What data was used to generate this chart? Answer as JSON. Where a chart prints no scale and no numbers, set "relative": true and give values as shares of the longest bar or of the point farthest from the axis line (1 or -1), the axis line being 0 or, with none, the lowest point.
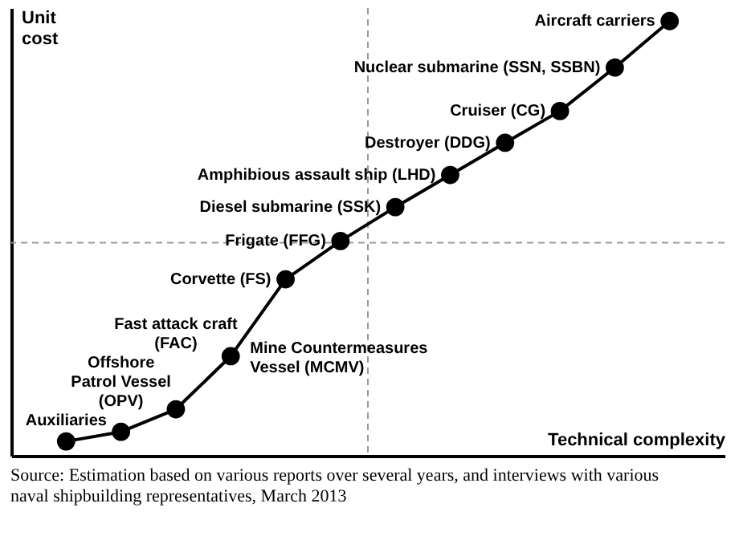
{
  "chart_data": {
    "type": "line",
    "relative": true,
    "marker": "circle",
    "line_style": "solid",
    "color": "#000000",
    "grid": false,
    "tick_labels": false,
    "xlabel": "Technical complexity",
    "ylabel": "Unit cost",
    "categories": [
      null,
      null,
      null,
      null,
      null,
      null,
      null,
      null,
      null,
      null,
      null,
      null
    ],
    "values": [
      0.033,
      0.055,
      0.107,
      0.229,
      0.406,
      0.494,
      0.572,
      0.646,
      0.72,
      0.793,
      0.893,
      1
    ],
    "ref_lines": [
      {
        "axis": "x",
        "line_style": "dashed",
        "color": "#999999"
      },
      {
        "axis": "y",
        "value": 0.49,
        "line_style": "dashed",
        "color": "#999999"
      }
    ],
    "annotations": [
      "Auxiliaries",
      "Offshore\nPatrol Vessel\n(OPV)",
      "Fast attack craft\n(FAC)",
      "Mine Countermeasures\nVessel (MCMV)",
      "Corvette (FS)",
      "Frigate (FFG)",
      "Diesel submarine (SSK)",
      "Amphibious assault ship (LHD)",
      "Destroyer (DDG)",
      "Cruiser (CG)",
      "Nuclear submarine (SSN, SSBN)",
      "Aircraft carriers",
      "Source: Estimation based on various reports over several years, and interviews with various naval shipbuilding representatives, March 2013"
    ]
  }
}
